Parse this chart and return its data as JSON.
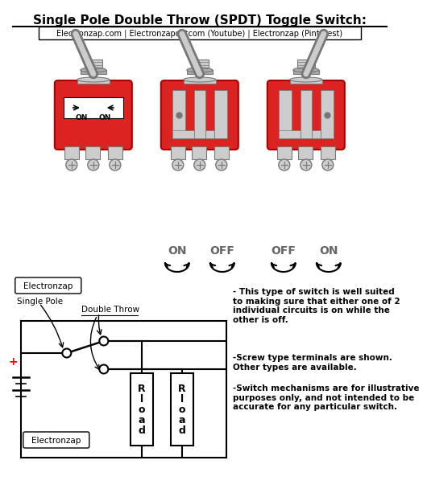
{
  "title": "Single Pole Double Throw (SPDT) Toggle Switch:",
  "subtitle": "Electronzap.com | Electronzapdotcom (Youtube) | Electronzap (Pinterest)",
  "bg_color": "#ffffff",
  "switch_red": "#dd2222",
  "switch_gray": "#aaaaaa",
  "switch_dark_gray": "#777777",
  "switch_light_gray": "#cccccc",
  "note1": "- This type of switch is well suited\nto making sure that either one of 2\nindividual circuits is on while the\nother is off.",
  "note2": "-Screw type terminals are shown.\nOther types are available.",
  "note3": "-Switch mechanisms are for illustrative\npurposes only, and not intended to be\naccurate for any particular switch.",
  "electronzap_label": "Electronzap",
  "single_pole_label": "Single Pole",
  "double_throw_label": "Double Throw"
}
